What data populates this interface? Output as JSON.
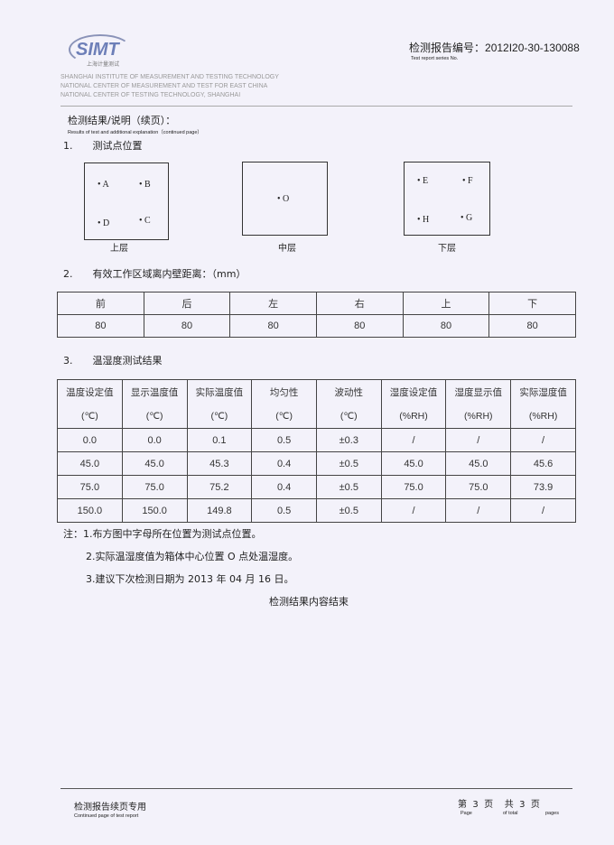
{
  "header": {
    "logo_text": "SIMT",
    "logo_sub": "上海计量测试",
    "report_no_label": "检测报告编号：",
    "report_no": "2012I20-30-130088",
    "report_no_en": "Test report series No.",
    "institute": [
      "SHANGHAI INSTITUTE OF MEASUREMENT AND TESTING TECHNOLOGY",
      "NATIONAL CENTER OF MEASUREMENT AND TEST FOR EAST CHINA",
      "NATIONAL CENTER OF TESTING TECHNOLOGY, SHANGHAI"
    ]
  },
  "title": "检测结果/说明（续页）：",
  "title_en": "Results of test and additional explanation（continued page）",
  "s1": {
    "num": "1.",
    "title": "测试点位置",
    "upper": {
      "label": "上层",
      "points": [
        "A",
        "B",
        "D",
        "C"
      ]
    },
    "middle": {
      "label": "中层",
      "points": [
        "O"
      ]
    },
    "lower": {
      "label": "下层",
      "points": [
        "E",
        "F",
        "H",
        "G"
      ]
    }
  },
  "s2": {
    "num": "2.",
    "title": "有效工作区域离内壁距离：（mm）",
    "headers": [
      "前",
      "后",
      "左",
      "右",
      "上",
      "下"
    ],
    "values": [
      "80",
      "80",
      "80",
      "80",
      "80",
      "80"
    ]
  },
  "s3": {
    "num": "3.",
    "title": "温湿度测试结果",
    "headers": [
      [
        "温度设定值",
        "(℃)"
      ],
      [
        "显示温度值",
        "(℃)"
      ],
      [
        "实际温度值",
        "(℃)"
      ],
      [
        "均匀性",
        "(℃)"
      ],
      [
        "波动性",
        "(℃)"
      ],
      [
        "湿度设定值",
        "(%RH)"
      ],
      [
        "湿度显示值",
        "(%RH)"
      ],
      [
        "实际湿度值",
        "(%RH)"
      ]
    ],
    "rows": [
      [
        "0.0",
        "0.0",
        "0.1",
        "0.5",
        "±0.3",
        "/",
        "/",
        "/"
      ],
      [
        "45.0",
        "45.0",
        "45.3",
        "0.4",
        "±0.5",
        "45.0",
        "45.0",
        "45.6"
      ],
      [
        "75.0",
        "75.0",
        "75.2",
        "0.4",
        "±0.5",
        "75.0",
        "75.0",
        "73.9"
      ],
      [
        "150.0",
        "150.0",
        "149.8",
        "0.5",
        "±0.5",
        "/",
        "/",
        "/"
      ]
    ]
  },
  "notes": {
    "label": "注：",
    "items": [
      "1.布方图中字母所在位置为测试点位置。",
      "2.实际温湿度值为箱体中心位置 O 点处温湿度。",
      "3.建议下次检测日期为 2013 年 04 月 16 日。"
    ],
    "end": "检测结果内容结束"
  },
  "footer": {
    "left": "检测报告续页专用",
    "left_en": "Continued page of test report",
    "page_text": "第  3  页    共  3  页",
    "page_en": [
      "Page",
      "of total",
      "pages"
    ]
  }
}
